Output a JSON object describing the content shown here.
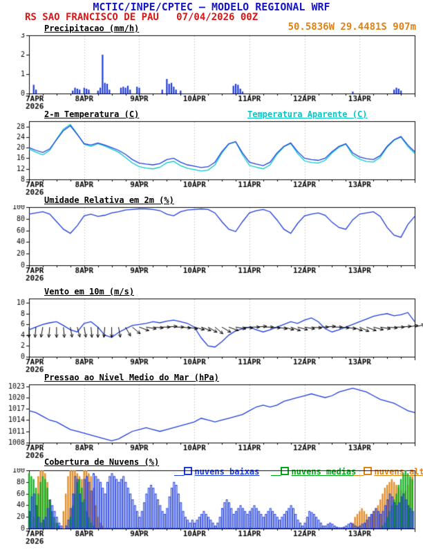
{
  "header": {
    "title": "MCTIC/INPE/CPTEC — MODELO REGIONAL WRF",
    "station_line": "RS SAO FRANCISCO DE PAU   07/04/2026 00Z",
    "coords": "50.5836W 29.4481S 907m",
    "colors": {
      "title": "#1414c8",
      "station": "#e01414",
      "coords": "#e08214"
    }
  },
  "time_axis": {
    "total_hours": 168,
    "day_ticks": [
      0,
      24,
      48,
      72,
      96,
      120,
      144
    ],
    "day_labels": [
      "7APR",
      "8APR",
      "9APR",
      "10APR",
      "11APR",
      "12APR",
      "13APR"
    ],
    "year_label": "2026",
    "minor_step": 6
  },
  "chart_data": [
    {
      "id": "precipitation",
      "type": "bar",
      "title": "Precipitacao (mm/h)",
      "ylim": [
        0,
        3
      ],
      "yticks": [
        0,
        1,
        2,
        3
      ],
      "bar_color": "#1e3cdc",
      "points": [
        [
          2,
          0.45
        ],
        [
          3,
          0.2
        ],
        [
          19,
          0.15
        ],
        [
          20,
          0.3
        ],
        [
          21,
          0.25
        ],
        [
          22,
          0.2
        ],
        [
          24,
          0.3
        ],
        [
          25,
          0.25
        ],
        [
          26,
          0.2
        ],
        [
          30,
          0.15
        ],
        [
          31,
          0.3
        ],
        [
          32,
          2.0
        ],
        [
          33,
          0.55
        ],
        [
          34,
          0.5
        ],
        [
          35,
          0.2
        ],
        [
          40,
          0.3
        ],
        [
          41,
          0.35
        ],
        [
          42,
          0.3
        ],
        [
          43,
          0.4
        ],
        [
          44,
          0.2
        ],
        [
          47,
          0.35
        ],
        [
          48,
          0.3
        ],
        [
          58,
          0.2
        ],
        [
          60,
          0.75
        ],
        [
          61,
          0.5
        ],
        [
          62,
          0.55
        ],
        [
          63,
          0.35
        ],
        [
          64,
          0.2
        ],
        [
          66,
          0.15
        ],
        [
          89,
          0.4
        ],
        [
          90,
          0.5
        ],
        [
          91,
          0.45
        ],
        [
          92,
          0.25
        ],
        [
          93,
          0.1
        ],
        [
          141,
          0.1
        ],
        [
          159,
          0.2
        ],
        [
          160,
          0.3
        ],
        [
          161,
          0.25
        ],
        [
          162,
          0.15
        ]
      ]
    },
    {
      "id": "temperature",
      "type": "line",
      "title": "2-m Temperatura (C)",
      "right_title": "Temperatura Aparente (C)",
      "right_title_color": "#00c8c8",
      "ylim": [
        8,
        30
      ],
      "yticks": [
        8,
        12,
        16,
        20,
        24,
        28
      ],
      "x_step": 3,
      "series": [
        {
          "name": "temperatura_aparente",
          "color": "#00c8c8",
          "values": [
            19.5,
            18.3,
            17.3,
            19,
            23.2,
            27,
            28.8,
            25.2,
            21.3,
            20.5,
            21.5,
            20.6,
            19.5,
            18.3,
            16.3,
            14.2,
            12.8,
            12.3,
            12,
            12.6,
            14.3,
            14.8,
            13.2,
            12.2,
            11.7,
            11.2,
            11.5,
            13.5,
            18,
            21.3,
            22.2,
            17.3,
            13.3,
            12.6,
            12,
            13.5,
            17.5,
            20.3,
            21.6,
            17.8,
            15,
            14.4,
            14.2,
            15.2,
            18,
            20.2,
            21.3,
            17.2,
            15.6,
            14.8,
            14.6,
            16.4,
            20.2,
            22.8,
            24,
            20.5,
            17.8
          ]
        },
        {
          "name": "temperatura_2m",
          "color": "#1e3cdc",
          "values": [
            20,
            19,
            18.2,
            19.5,
            23,
            26.5,
            28.3,
            25,
            21.5,
            21,
            21.8,
            21,
            20,
            19,
            17.5,
            15.5,
            14.2,
            13.8,
            13.5,
            14,
            15.5,
            16,
            14.5,
            13.5,
            13,
            12.5,
            12.8,
            14.5,
            18.5,
            21.5,
            22.3,
            18,
            14.5,
            13.8,
            13.2,
            14.5,
            18,
            20.5,
            21.8,
            18.5,
            16,
            15.5,
            15.2,
            16,
            18.5,
            20.5,
            21.5,
            18,
            16.5,
            15.8,
            15.5,
            17,
            20.5,
            23,
            24.2,
            21,
            18.5
          ]
        }
      ]
    },
    {
      "id": "humidity",
      "type": "line",
      "title": "Umidade Relativa em 2m (%)",
      "ylim": [
        0,
        100
      ],
      "yticks": [
        0,
        20,
        40,
        60,
        80,
        100
      ],
      "x_step": 3,
      "series": [
        {
          "name": "umidade_relativa",
          "color": "#1e3cdc",
          "values": [
            88,
            90,
            92,
            88,
            75,
            62,
            55,
            68,
            85,
            88,
            84,
            86,
            90,
            92,
            95,
            96,
            97,
            97,
            96,
            94,
            88,
            85,
            92,
            95,
            96,
            97,
            96,
            90,
            75,
            62,
            58,
            75,
            90,
            94,
            96,
            92,
            78,
            62,
            55,
            72,
            85,
            88,
            90,
            86,
            74,
            65,
            62,
            78,
            88,
            90,
            92,
            84,
            65,
            52,
            48,
            70,
            84
          ]
        }
      ]
    },
    {
      "id": "wind",
      "type": "wind",
      "title": "Vento em 10m (m/s)",
      "ylim": [
        0,
        10.8
      ],
      "yticks": [
        0,
        2,
        4,
        6,
        8,
        10
      ],
      "x_step": 3,
      "series": [
        {
          "name": "velocidade_vento",
          "color": "#1e3cdc",
          "values": [
            5,
            5.5,
            6,
            6.3,
            6.5,
            5.8,
            5,
            4.6,
            6.2,
            6.5,
            5.5,
            4,
            3.6,
            4.5,
            5.2,
            5.8,
            6,
            6.2,
            6.5,
            6.3,
            6.6,
            6.8,
            6.5,
            6.2,
            5.5,
            3.5,
            2,
            1.8,
            2.8,
            4,
            4.8,
            5.2,
            5.5,
            5,
            4.6,
            5,
            5.5,
            6,
            6.5,
            6.2,
            6.8,
            7.2,
            6.5,
            5.2,
            4.6,
            5,
            5.5,
            6,
            6.5,
            7,
            7.5,
            7.8,
            8,
            7.6,
            7.8,
            8.2,
            6.5
          ]
        }
      ],
      "barbs": {
        "anchor": 5.5,
        "color": "#000000",
        "dirs": [
          180,
          185,
          190,
          185,
          180,
          175,
          170,
          165,
          170,
          175,
          180,
          185,
          180,
          170,
          150,
          130,
          110,
          100,
          95,
          90,
          85,
          90,
          95,
          100,
          105,
          110,
          120,
          130,
          120,
          110,
          100,
          95,
          90,
          85,
          90,
          95,
          100,
          105,
          110,
          105,
          100,
          95,
          90,
          85,
          90,
          95,
          100,
          110,
          115,
          110,
          105,
          100,
          95,
          90,
          85,
          80,
          75
        ]
      }
    },
    {
      "id": "pressure",
      "type": "line",
      "title": "Pressao ao Nivel Medio do Mar (hPa)",
      "ylim": [
        1008,
        1023.5
      ],
      "yticks": [
        1008,
        1011,
        1014,
        1017,
        1020,
        1023
      ],
      "x_step": 3,
      "series": [
        {
          "name": "pressao_nivel_mar",
          "color": "#1e3cdc",
          "values": [
            1016.5,
            1016,
            1015,
            1014,
            1013.5,
            1012.5,
            1011.5,
            1011,
            1010.5,
            1010,
            1009.5,
            1009,
            1008.5,
            1009,
            1010,
            1011,
            1011.5,
            1012,
            1011.5,
            1011,
            1011.5,
            1012,
            1012.5,
            1013,
            1013.5,
            1014.5,
            1014,
            1013.5,
            1014,
            1014.5,
            1015,
            1015.5,
            1016.5,
            1017.5,
            1018,
            1017.5,
            1018,
            1019,
            1019.5,
            1020,
            1020.5,
            1021,
            1020.5,
            1020,
            1020.5,
            1021.5,
            1022,
            1022.5,
            1022,
            1021.5,
            1020.5,
            1019.5,
            1019,
            1018.5,
            1017.5,
            1016.5,
            1016
          ]
        }
      ]
    },
    {
      "id": "clouds",
      "type": "bars3",
      "title": "Cobertura de Nuvens (%)",
      "ylim": [
        0,
        100
      ],
      "yticks": [
        0,
        20,
        40,
        60,
        80,
        100
      ],
      "legend": [
        {
          "label": "nuvens baixas",
          "color": "#1e3cdc"
        },
        {
          "label": "nuvens medias",
          "color": "#00aa14"
        },
        {
          "label": "nuvens altas",
          "color": "#e08214"
        }
      ],
      "series": [
        {
          "name": "nuvens_altas",
          "color": "#e08214",
          "fill": true,
          "values": [
            0,
            0,
            20,
            60,
            90,
            100,
            100,
            95,
            80,
            50,
            20,
            10,
            0,
            0,
            0,
            30,
            60,
            90,
            100,
            100,
            100,
            95,
            90,
            85,
            100,
            100,
            95,
            90,
            70,
            40,
            20,
            10,
            5,
            0,
            0,
            0,
            0,
            0,
            0,
            0,
            0,
            0,
            0,
            0,
            0,
            0,
            0,
            0,
            0,
            0,
            0,
            0,
            0,
            0,
            0,
            0,
            0,
            0,
            0,
            0,
            0,
            0,
            0,
            0,
            0,
            0,
            0,
            0,
            0,
            0,
            0,
            0,
            0,
            0,
            0,
            0,
            0,
            0,
            0,
            0,
            0,
            0,
            0,
            0,
            0,
            0,
            0,
            0,
            0,
            0,
            0,
            0,
            0,
            0,
            0,
            0,
            0,
            0,
            0,
            0,
            0,
            0,
            0,
            0,
            0,
            0,
            0,
            0,
            0,
            0,
            0,
            0,
            0,
            0,
            0,
            0,
            0,
            0,
            0,
            0,
            0,
            0,
            0,
            0,
            0,
            0,
            0,
            0,
            0,
            0,
            0,
            0,
            0,
            0,
            0,
            0,
            0,
            0,
            0,
            0,
            0,
            10,
            20,
            25,
            30,
            35,
            30,
            25,
            20,
            25,
            30,
            35,
            40,
            50,
            60,
            70,
            75,
            80,
            85,
            80,
            75,
            70,
            65,
            60,
            65,
            75,
            85,
            90
          ]
        },
        {
          "name": "nuvens_medias",
          "color": "#00aa14",
          "fill": true,
          "values": [
            95,
            90,
            85,
            70,
            60,
            80,
            90,
            85,
            70,
            50,
            30,
            20,
            10,
            5,
            0,
            0,
            0,
            0,
            20,
            40,
            60,
            80,
            85,
            70,
            50,
            30,
            20,
            10,
            5,
            0,
            0,
            0,
            0,
            0,
            0,
            0,
            0,
            0,
            0,
            0,
            0,
            0,
            0,
            0,
            0,
            0,
            0,
            0,
            0,
            0,
            0,
            0,
            0,
            0,
            0,
            0,
            0,
            0,
            0,
            0,
            0,
            0,
            0,
            0,
            0,
            0,
            0,
            0,
            0,
            0,
            0,
            0,
            0,
            0,
            0,
            0,
            0,
            0,
            0,
            0,
            0,
            0,
            0,
            0,
            0,
            0,
            0,
            0,
            0,
            0,
            0,
            0,
            0,
            0,
            0,
            0,
            0,
            0,
            0,
            0,
            0,
            0,
            0,
            0,
            0,
            0,
            0,
            0,
            0,
            0,
            0,
            0,
            0,
            0,
            0,
            0,
            0,
            0,
            0,
            0,
            0,
            0,
            0,
            0,
            0,
            0,
            0,
            0,
            0,
            0,
            0,
            0,
            0,
            0,
            0,
            0,
            0,
            0,
            0,
            0,
            0,
            0,
            0,
            0,
            0,
            0,
            0,
            0,
            0,
            0,
            0,
            0,
            0,
            0,
            5,
            10,
            20,
            30,
            40,
            50,
            60,
            75,
            85,
            95,
            100,
            95,
            90,
            85
          ]
        },
        {
          "name": "nuvens_baixas",
          "color": "#1e3cdc",
          "fill": false,
          "values": [
            30,
            55,
            60,
            40,
            20,
            10,
            15,
            20,
            35,
            50,
            40,
            30,
            20,
            10,
            5,
            0,
            5,
            15,
            35,
            60,
            90,
            85,
            60,
            45,
            85,
            90,
            80,
            65,
            95,
            90,
            85,
            80,
            70,
            60,
            80,
            90,
            95,
            90,
            85,
            80,
            85,
            90,
            80,
            70,
            60,
            50,
            40,
            30,
            20,
            30,
            45,
            60,
            70,
            75,
            70,
            60,
            50,
            40,
            30,
            25,
            35,
            55,
            70,
            80,
            75,
            60,
            45,
            30,
            20,
            15,
            10,
            15,
            10,
            15,
            20,
            25,
            30,
            25,
            20,
            15,
            10,
            5,
            10,
            20,
            35,
            45,
            50,
            45,
            35,
            25,
            30,
            35,
            40,
            35,
            30,
            25,
            30,
            35,
            40,
            35,
            30,
            25,
            20,
            25,
            30,
            35,
            30,
            25,
            20,
            15,
            20,
            25,
            30,
            35,
            40,
            35,
            25,
            15,
            10,
            5,
            10,
            20,
            30,
            28,
            25,
            20,
            15,
            10,
            5,
            5,
            8,
            10,
            8,
            5,
            3,
            2,
            2,
            3,
            5,
            8,
            10,
            8,
            5,
            3,
            5,
            8,
            10,
            15,
            20,
            25,
            30,
            35,
            30,
            25,
            30,
            40,
            50,
            60,
            55,
            45,
            40,
            45,
            55,
            60,
            50,
            40,
            35,
            30
          ]
        }
      ]
    }
  ]
}
